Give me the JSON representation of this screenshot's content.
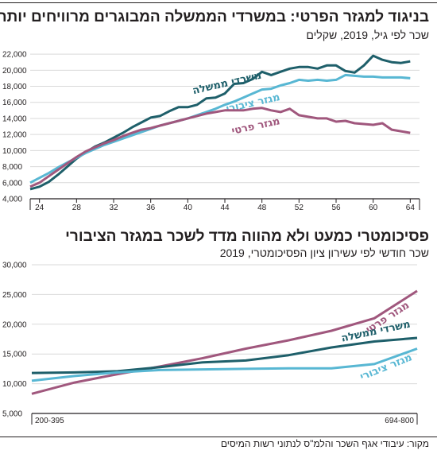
{
  "chart1": {
    "title": "בניגוד למגזר הפרטי: במשרדי הממשלה המבוגרים מרוויחים יותר",
    "subtitle": "שכר לפי גיל, 2019, שקלים"
  },
  "chart2": {
    "title": "פסיכומטרי כמעט ולא מהווה מדד לשכר במגזר הציבורי",
    "subtitle": "שכר חודשי לפי עשירון ציון הפסיכומטרי, 2019"
  },
  "source": "מקור: עיבודי אגף השכר והלמ\"ס לנתוני רשות המיסים",
  "colors": {
    "government": "#1e5f6a",
    "public": "#58b7d3",
    "private": "#a0577d",
    "axis": "#231f20",
    "grid": "#d9d9d9"
  },
  "chart_data": [
    {
      "type": "line",
      "xlim": [
        23,
        65
      ],
      "ylim": [
        4000,
        23000
      ],
      "x_ticks": [
        "24",
        "28",
        "32",
        "36",
        "40",
        "44",
        "48",
        "52",
        "56",
        "60",
        "64"
      ],
      "y_ticks": [
        "4,000",
        "6,000",
        "8,000",
        "10,000",
        "12,000",
        "14,000",
        "16,000",
        "18,000",
        "20,000",
        "22,000"
      ],
      "series": [
        {
          "name": "משרדי ממשלה",
          "color_key": "government",
          "x": [
            23,
            24,
            25,
            26,
            27,
            28,
            29,
            30,
            31,
            32,
            33,
            34,
            35,
            36,
            37,
            38,
            39,
            40,
            41,
            42,
            43,
            44,
            45,
            46,
            47,
            48,
            49,
            50,
            51,
            52,
            53,
            54,
            55,
            56,
            57,
            58,
            59,
            60,
            61,
            62,
            63,
            64
          ],
          "y": [
            5200,
            5500,
            6100,
            7000,
            8000,
            9000,
            9800,
            10500,
            11000,
            11600,
            12200,
            12900,
            13500,
            14100,
            14300,
            14900,
            15400,
            15400,
            15700,
            16500,
            16600,
            17100,
            18300,
            18400,
            18900,
            19800,
            19400,
            19800,
            20200,
            20400,
            20400,
            20200,
            20600,
            20600,
            19900,
            19700,
            20600,
            21800,
            21300,
            21000,
            20900,
            21100
          ]
        },
        {
          "name": "מגזר ציבורי",
          "color_key": "public",
          "x": [
            23,
            24,
            25,
            26,
            27,
            28,
            29,
            30,
            31,
            32,
            33,
            34,
            35,
            36,
            37,
            38,
            39,
            40,
            41,
            42,
            43,
            44,
            45,
            46,
            47,
            48,
            49,
            50,
            51,
            52,
            53,
            54,
            55,
            56,
            57,
            58,
            59,
            60,
            61,
            62,
            63,
            64
          ],
          "y": [
            6000,
            6600,
            7200,
            7900,
            8500,
            9100,
            9700,
            10200,
            10700,
            11100,
            11500,
            11900,
            12300,
            12700,
            13100,
            13400,
            13700,
            14000,
            14400,
            14800,
            15200,
            15700,
            16100,
            16600,
            17100,
            17600,
            17700,
            18100,
            18400,
            18800,
            18700,
            18800,
            18700,
            18800,
            19400,
            19300,
            19200,
            19200,
            19100,
            19100,
            19100,
            19000
          ]
        },
        {
          "name": "מגזר פרטי",
          "color_key": "private",
          "x": [
            23,
            24,
            25,
            26,
            27,
            28,
            29,
            30,
            31,
            32,
            33,
            34,
            35,
            36,
            37,
            38,
            39,
            40,
            41,
            42,
            43,
            44,
            45,
            46,
            47,
            48,
            49,
            50,
            51,
            52,
            53,
            54,
            55,
            56,
            57,
            58,
            59,
            60,
            61,
            62,
            63,
            64
          ],
          "y": [
            5500,
            6000,
            6800,
            7600,
            8400,
            9200,
            9900,
            10400,
            10900,
            11300,
            11800,
            12200,
            12600,
            12800,
            13100,
            13400,
            13700,
            14000,
            14300,
            14600,
            14800,
            15000,
            15000,
            15000,
            15200,
            15300,
            15000,
            14800,
            15200,
            14400,
            14200,
            14000,
            14000,
            13600,
            13700,
            13400,
            13300,
            13200,
            13400,
            12600,
            12400,
            12200
          ]
        }
      ]
    },
    {
      "type": "line",
      "xlim": [
        1,
        10
      ],
      "ylim": [
        5000,
        30000
      ],
      "x_ticks": [
        "200-395",
        "694-800"
      ],
      "y_ticks": [
        "5,000",
        "10,000",
        "15,000",
        "20,000",
        "25,000",
        "30,000"
      ],
      "series": [
        {
          "name": "מגזר פרטי",
          "color_key": "private",
          "x": [
            1,
            2,
            3,
            4,
            5,
            6,
            7,
            8,
            9,
            10
          ],
          "y": [
            8300,
            10200,
            11600,
            12900,
            14300,
            15900,
            17300,
            18900,
            21000,
            25600
          ]
        },
        {
          "name": "משרדי ממשלה",
          "color_key": "government",
          "x": [
            1,
            2,
            3,
            4,
            5,
            6,
            7,
            8,
            9,
            10
          ],
          "y": [
            11800,
            11900,
            12100,
            12800,
            13600,
            13900,
            14800,
            16100,
            17100,
            17700
          ]
        },
        {
          "name": "מגזר ציבורי",
          "color_key": "public",
          "x": [
            1,
            2,
            3,
            4,
            5,
            6,
            7,
            8,
            9,
            10
          ],
          "y": [
            10500,
            11300,
            11900,
            12300,
            12400,
            12500,
            12600,
            12600,
            13300,
            15900
          ]
        }
      ]
    }
  ]
}
